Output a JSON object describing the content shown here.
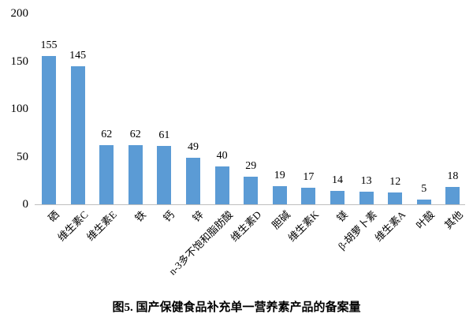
{
  "chart_data": {
    "type": "bar",
    "title": "图5. 国产保健食品补充单一营养素产品的备案量",
    "xlabel": "",
    "ylabel": "",
    "ylim": [
      0,
      200
    ],
    "yticks": [
      0,
      50,
      100,
      150,
      200
    ],
    "grid": false,
    "legend": null,
    "bar_color": "#5b9bd5",
    "categories": [
      "硒",
      "维生素C",
      "维生素E",
      "铁",
      "钙",
      "锌",
      "n-3多不饱和脂肪酸",
      "维生素D",
      "胆碱",
      "维生素K",
      "镁",
      "β-胡萝卜素",
      "维生素A",
      "叶酸",
      "其他"
    ],
    "values": [
      155,
      145,
      62,
      62,
      61,
      49,
      40,
      29,
      19,
      17,
      14,
      13,
      12,
      5,
      18
    ]
  },
  "caption": "图5. 国产保健食品补充单一营养素产品的备案量"
}
